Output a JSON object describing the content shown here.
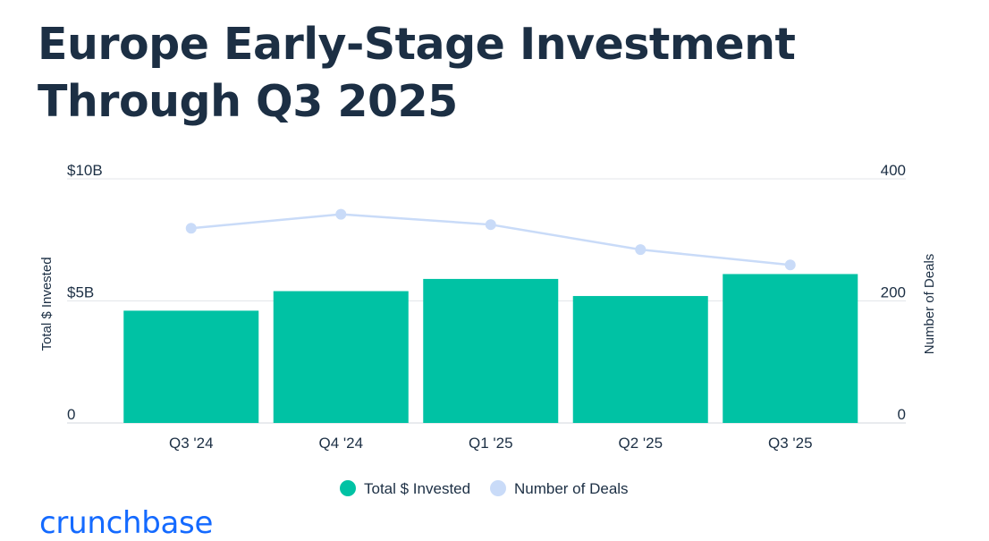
{
  "title_line1": "Europe Early-Stage Investment",
  "title_line2": "Through Q3 2025",
  "brand": "crunchbase",
  "colors": {
    "title": "#1c2f44",
    "bar": "#00c2a4",
    "line": "#c9dbf8",
    "axis_text": "#1c2f44",
    "grid": "#e3e6ea",
    "brand": "#146aff"
  },
  "chart_data": {
    "type": "bar",
    "title": "Europe Early-Stage Investment Through Q3 2025",
    "categories": [
      "Q3 '24",
      "Q4 '24",
      "Q1 '25",
      "Q2 '25",
      "Q3 '25"
    ],
    "series": [
      {
        "name": "Total $ Invested",
        "type": "bar",
        "axis": "left",
        "unit": "billions USD",
        "values": [
          4.6,
          5.4,
          5.9,
          5.2,
          6.1
        ]
      },
      {
        "name": "Number of Deals",
        "type": "line",
        "axis": "right",
        "values": [
          319,
          342,
          325,
          284,
          259
        ]
      }
    ],
    "ylabel": "Total $ Invested",
    "ylabel_right": "Number of Deals",
    "ylim": [
      0,
      10
    ],
    "ylim_right": [
      0,
      400
    ],
    "yticks": [
      {
        "value": 0,
        "label": "0"
      },
      {
        "value": 5,
        "label": "$5B"
      },
      {
        "value": 10,
        "label": "$10B"
      }
    ],
    "yticks_right": [
      {
        "value": 0,
        "label": "0"
      },
      {
        "value": 200,
        "label": "200"
      },
      {
        "value": 400,
        "label": "400"
      }
    ],
    "grid": true,
    "legend": "bottom-center"
  }
}
